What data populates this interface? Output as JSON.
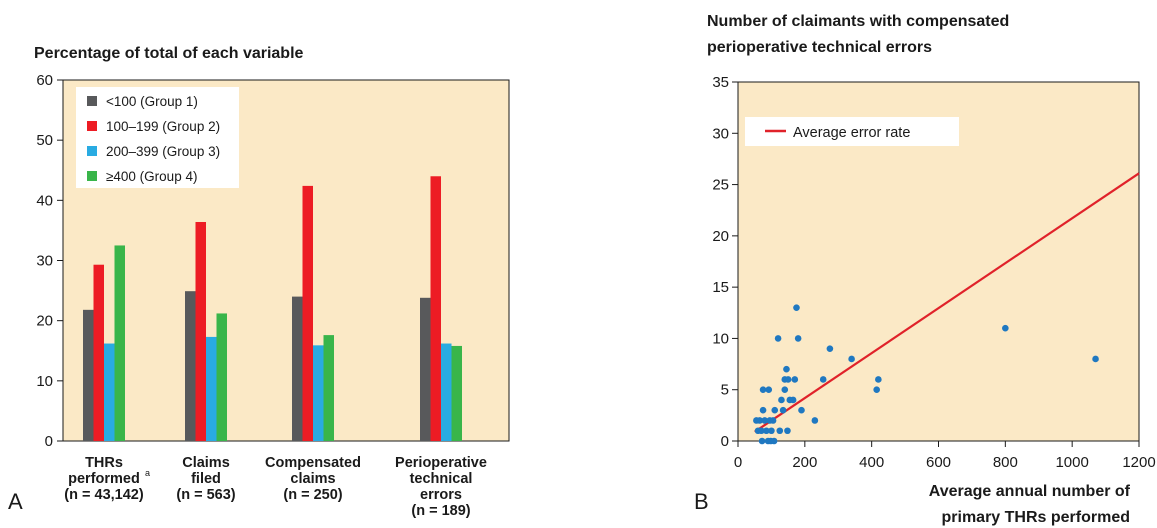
{
  "panel_labels": {
    "a": "A",
    "b": "B"
  },
  "colors": {
    "plot_bg": "#fbe9c6",
    "group1": "#58595b",
    "group2": "#ed1c24",
    "group3": "#29abe2",
    "group4": "#39b54a",
    "scatter_point": "#1f78c1",
    "trend_line": "#e0222a"
  },
  "chart_data": [
    {
      "type": "bar",
      "title": "Percentage of total of each variable",
      "xlabel": "",
      "ylabel": "",
      "ylim": [
        0,
        60
      ],
      "yticks": [
        0,
        10,
        20,
        30,
        40,
        50,
        60
      ],
      "grid": false,
      "legend_position": "top-left",
      "categories": [
        {
          "lines": [
            "THRs",
            "performed",
            "(n = 43,142)"
          ],
          "superscript": "a"
        },
        {
          "lines": [
            "Claims",
            "filed",
            "(n = 563)"
          ]
        },
        {
          "lines": [
            "Compensated",
            "claims",
            "(n = 250)"
          ]
        },
        {
          "lines": [
            "Perioperative",
            "technical",
            "errors",
            "(n = 189)"
          ]
        }
      ],
      "series": [
        {
          "name": "<100 (Group 1)",
          "color_key": "group1",
          "values": [
            21.8,
            24.9,
            24.0,
            23.8
          ]
        },
        {
          "name": "100–199 (Group 2)",
          "color_key": "group2",
          "values": [
            29.3,
            36.4,
            42.4,
            44.0
          ]
        },
        {
          "name": "200–399 (Group 3)",
          "color_key": "group3",
          "values": [
            16.2,
            17.3,
            15.9,
            16.2
          ]
        },
        {
          "name": "≥400 (Group 4)",
          "color_key": "group4",
          "values": [
            32.5,
            21.2,
            17.6,
            15.8
          ]
        }
      ]
    },
    {
      "type": "scatter",
      "title_lines": [
        "Number of claimants with compensated",
        "perioperative technical errors"
      ],
      "xlabel_lines": [
        "Average annual number of",
        "primary THRs performed"
      ],
      "ylabel": "",
      "xlim": [
        0,
        1200
      ],
      "ylim": [
        0,
        35
      ],
      "xticks": [
        0,
        200,
        400,
        600,
        800,
        1000,
        1200
      ],
      "yticks": [
        0,
        5,
        10,
        15,
        20,
        25,
        30,
        35
      ],
      "grid": false,
      "legend_position": "top-left",
      "legend": [
        {
          "name": "Average error rate",
          "kind": "line"
        }
      ],
      "points": [
        [
          55,
          2
        ],
        [
          60,
          1
        ],
        [
          65,
          2
        ],
        [
          70,
          1
        ],
        [
          72,
          0
        ],
        [
          75,
          5
        ],
        [
          75,
          3
        ],
        [
          80,
          2
        ],
        [
          85,
          1
        ],
        [
          90,
          0
        ],
        [
          92,
          5
        ],
        [
          95,
          2
        ],
        [
          98,
          0
        ],
        [
          100,
          1
        ],
        [
          105,
          2
        ],
        [
          108,
          0
        ],
        [
          110,
          3
        ],
        [
          120,
          10
        ],
        [
          125,
          1
        ],
        [
          130,
          4
        ],
        [
          135,
          3
        ],
        [
          140,
          5
        ],
        [
          140,
          6
        ],
        [
          145,
          7
        ],
        [
          148,
          1
        ],
        [
          150,
          6
        ],
        [
          155,
          4
        ],
        [
          165,
          4
        ],
        [
          170,
          6
        ],
        [
          175,
          13
        ],
        [
          180,
          10
        ],
        [
          190,
          3
        ],
        [
          230,
          2
        ],
        [
          255,
          6
        ],
        [
          275,
          9
        ],
        [
          340,
          8
        ],
        [
          415,
          5
        ],
        [
          420,
          6
        ],
        [
          800,
          11
        ],
        [
          1070,
          8
        ]
      ],
      "trend_line": {
        "name": "Average error rate",
        "from": [
          50,
          0.9
        ],
        "to": [
          1200,
          26.1
        ]
      }
    }
  ]
}
